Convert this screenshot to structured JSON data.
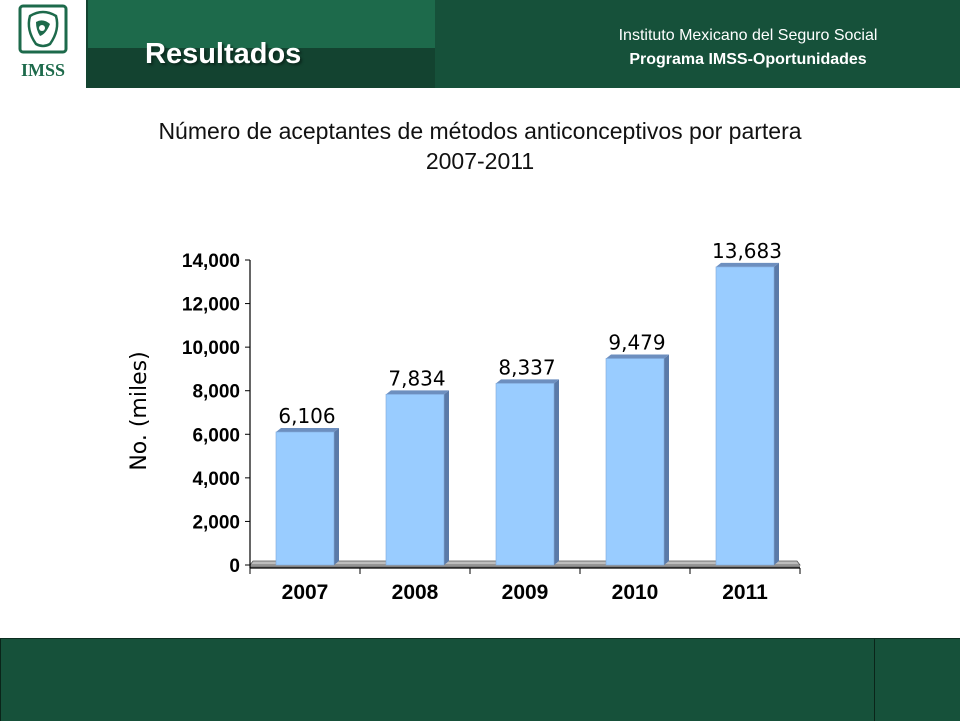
{
  "header": {
    "logo_text": "IMSS",
    "section_title": "Resultados",
    "institution": "Instituto Mexicano del Seguro Social",
    "program": "Programa IMSS-Oportunidades"
  },
  "colors": {
    "header_green": "#16513a",
    "bar_fill": "#99ccff",
    "bar_side": "#5a7aa8"
  },
  "chart_data": {
    "type": "bar",
    "title": "Número de aceptantes de métodos anticonceptivos por partera",
    "subtitle": "2007-2011",
    "xlabel": "",
    "ylabel": "No. (miles)",
    "categories": [
      "2007",
      "2008",
      "2009",
      "2010",
      "2011"
    ],
    "values": [
      6106,
      7834,
      8337,
      9479,
      13683
    ],
    "value_labels": [
      "6,106",
      "7,834",
      "8,337",
      "9,479",
      "13,683"
    ],
    "ylim": [
      0,
      14000
    ],
    "yticks": [
      0,
      2000,
      4000,
      6000,
      8000,
      10000,
      12000,
      14000
    ],
    "ytick_labels": [
      "0",
      "2,000",
      "4,000",
      "6,000",
      "8,000",
      "10,000",
      "12,000",
      "14,000"
    ],
    "grid": false,
    "legend": "none"
  }
}
